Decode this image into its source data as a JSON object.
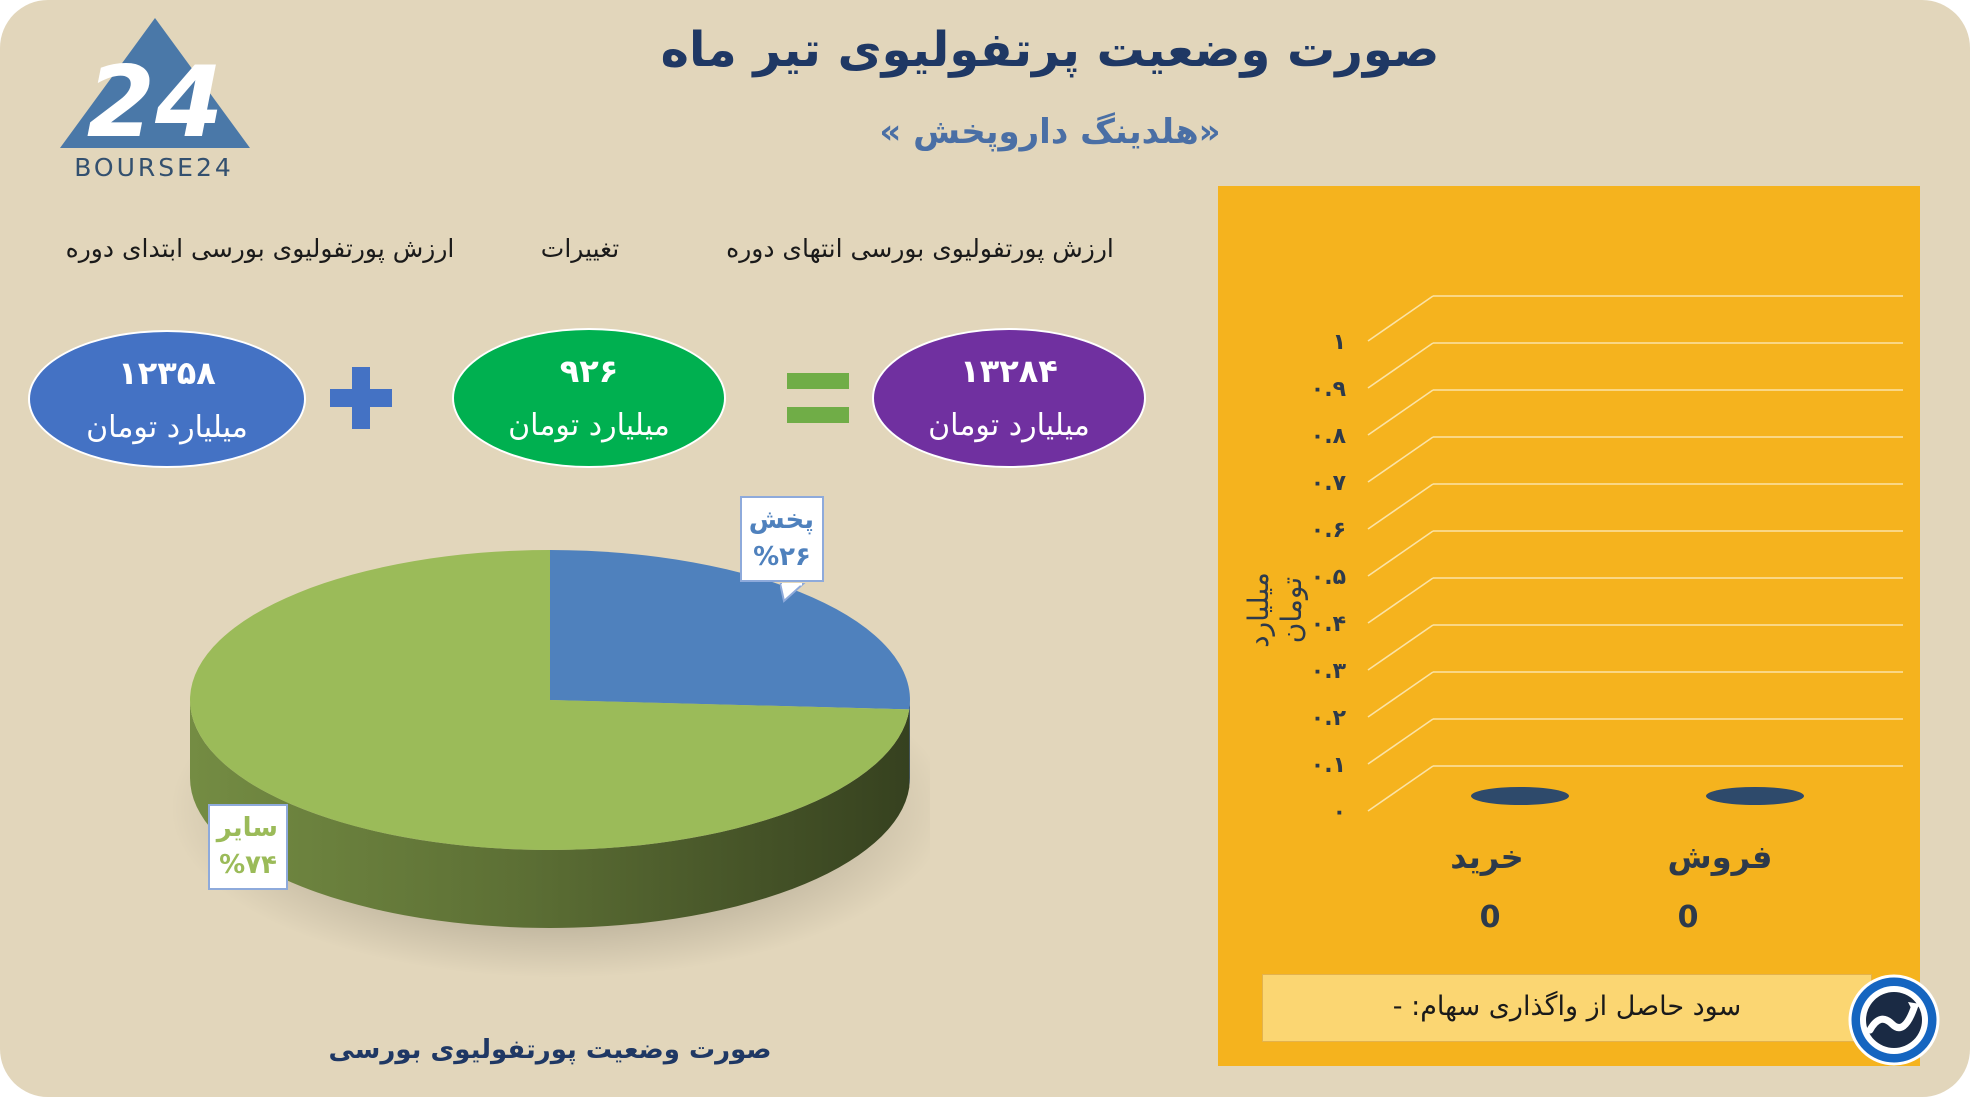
{
  "header": {
    "title": "صورت وضعیت پرتفولیوی تیر ماه",
    "subtitle": "«هلدینگ داروپخش »",
    "logo_text": "BOURSE24",
    "logo_mark": "24"
  },
  "equation": {
    "start": {
      "label": "ارزش پورتفولیوی بورسی ابتدای دوره",
      "value": "۱۲۳۵۸",
      "unit": "میلیارد تومان",
      "color": "#4472c4"
    },
    "change": {
      "label": "تغییرات",
      "value": "۹۲۶",
      "unit": "میلیارد تومان",
      "color": "#00b050"
    },
    "end": {
      "label": "ارزش پورتفولیوی بورسی انتهای دوره",
      "value": "۱۳۲۸۴",
      "unit": "میلیارد تومان",
      "color": "#7030a0"
    },
    "plus_color": "#4472c4",
    "equals_color": "#70ad47"
  },
  "chart_data": [
    {
      "type": "pie",
      "title": "صورت وضعیت پورتفولیوی بورسی",
      "slices": [
        {
          "label": "پخش",
          "value": 26,
          "value_label": "%۲۶",
          "color": "#4f81bd"
        },
        {
          "label": "سایر",
          "value": 74,
          "value_label": "%۷۴",
          "color": "#9bbb59"
        }
      ]
    },
    {
      "type": "bar",
      "ylabel": "میلیارد تومان",
      "ylim": [
        0,
        1
      ],
      "yticks": [
        "۰",
        "۰.۱",
        "۰.۲",
        "۰.۳",
        "۰.۴",
        "۰.۵",
        "۰.۶",
        "۰.۷",
        "۰.۸",
        "۰.۹",
        "۱"
      ],
      "categories": [
        "خرید",
        "فروش"
      ],
      "values": [
        0,
        0
      ],
      "value_labels": [
        "0",
        "0"
      ],
      "bar_color": "#2e4a6b",
      "grid": true
    }
  ],
  "trade_panel": {
    "background": "#f5b31e",
    "profit_text": "سود حاصل از واگذاری سهام: -",
    "badge_icon": "trend-up-icon"
  }
}
